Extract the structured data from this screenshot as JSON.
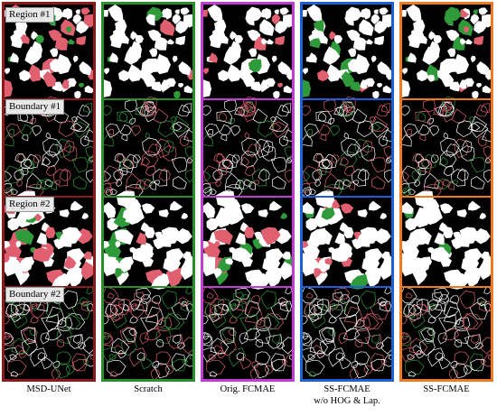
{
  "columns": [
    {
      "caption_line1": "MSD-UNet",
      "caption_line2": "",
      "border_color": "#8b1a1a"
    },
    {
      "caption_line1": "Scratch",
      "caption_line2": "",
      "border_color": "#2a8f2a"
    },
    {
      "caption_line1": "Orig. FCMAE",
      "caption_line2": "",
      "border_color": "#c23bd4"
    },
    {
      "caption_line1": "SS-FCMAE",
      "caption_line2": "w/o HOG & Lap.",
      "border_color": "#1f5fd6"
    },
    {
      "caption_line1": "SS-FCMAE",
      "caption_line2": "",
      "border_color": "#ee7a22"
    }
  ],
  "labels": {
    "region1": "Region #1",
    "boundary1": "Boundary #1",
    "region2": "Region #2",
    "boundary2": "Boundary #2"
  },
  "colors": {
    "particle": "#ffffff",
    "false_negative": "#e06070",
    "false_positive": "#2e9a3a",
    "background": "#000000"
  }
}
